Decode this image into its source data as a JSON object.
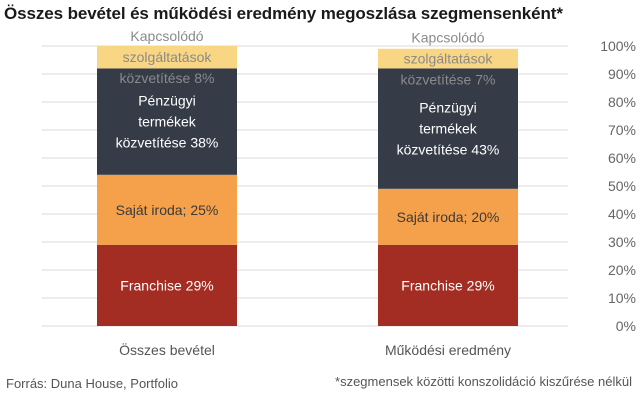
{
  "title": "Összes bevétel és működési eredmény megoszlása szegmensenként*",
  "source": "Forrás: Duna House, Portfolio",
  "footnote": "*szegmensek közötti konszolidáció kiszűrése nélkül",
  "chart_data": {
    "type": "bar",
    "stacked": true,
    "categories": [
      "Összes bevétel",
      "Működési eredmény"
    ],
    "ylim": [
      0,
      100
    ],
    "y_ticks": [
      "0%",
      "10%",
      "20%",
      "30%",
      "40%",
      "50%",
      "60%",
      "70%",
      "80%",
      "90%",
      "100%"
    ],
    "grid": true,
    "series": [
      {
        "color": "#a32d22",
        "label_color": "#ffffff",
        "values": [
          29,
          29
        ],
        "labels": [
          [
            "Franchise 29%"
          ],
          [
            "Franchise 29%"
          ]
        ]
      },
      {
        "color": "#f5a04a",
        "label_color": "#3a3a3a",
        "values": [
          25,
          20
        ],
        "labels": [
          [
            "Saját iroda; 25%"
          ],
          [
            "Saját iroda; 20%"
          ]
        ]
      },
      {
        "color": "#353c47",
        "label_color": "#ffffff",
        "values": [
          38,
          43
        ],
        "labels": [
          [
            "Pénzügyi",
            "termékek",
            "közvetítése 38%"
          ],
          [
            "Pénzügyi",
            "termékek",
            "közvetítése 43%"
          ]
        ]
      },
      {
        "color": "#f8d684",
        "label_color": "#8a8a8a",
        "values": [
          8,
          7
        ],
        "labels": [
          [
            "Kapcsolódó",
            "szolgáltatások",
            "közvetítése 8%"
          ],
          [
            "Kapcsolódó",
            "szolgáltatások",
            "közvetítése 7%"
          ]
        ]
      }
    ]
  }
}
